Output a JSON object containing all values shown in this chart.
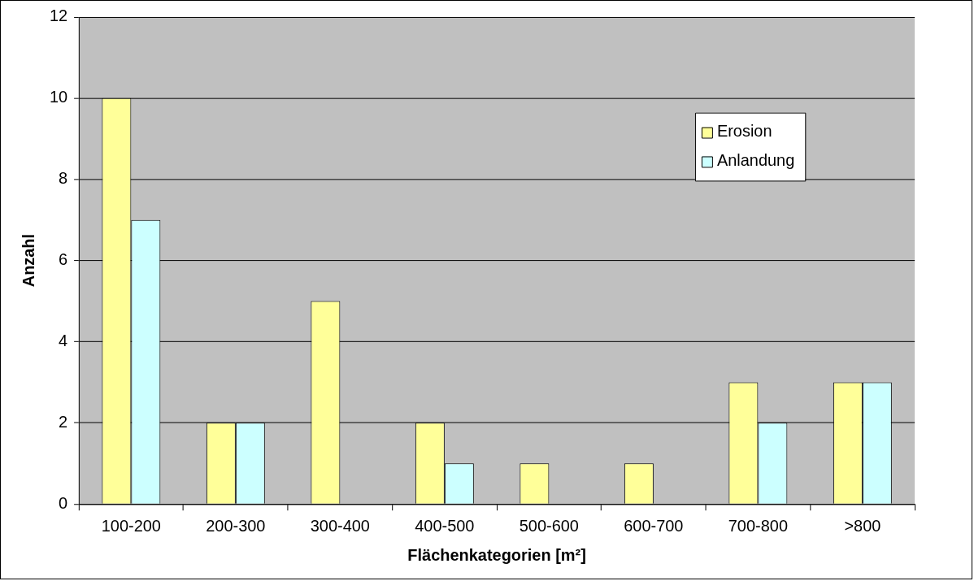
{
  "chart_data": {
    "type": "bar",
    "xlabel": "Flächenkategorien [m²]",
    "ylabel": "Anzahl",
    "categories": [
      "100-200",
      "200-300",
      "300-400",
      "400-500",
      "500-600",
      "600-700",
      "700-800",
      ">800"
    ],
    "series": [
      {
        "name": "Erosion",
        "color": "#ffff99",
        "values": [
          10,
          2,
          5,
          2,
          1,
          1,
          3,
          3
        ]
      },
      {
        "name": "Anlandung",
        "color": "#ccffff",
        "values": [
          7,
          2,
          0,
          1,
          0,
          0,
          2,
          3
        ]
      }
    ],
    "ylim": [
      0,
      12
    ],
    "yticks": [
      0,
      2,
      4,
      6,
      8,
      10,
      12
    ],
    "grid": "y",
    "legend": "top right"
  }
}
